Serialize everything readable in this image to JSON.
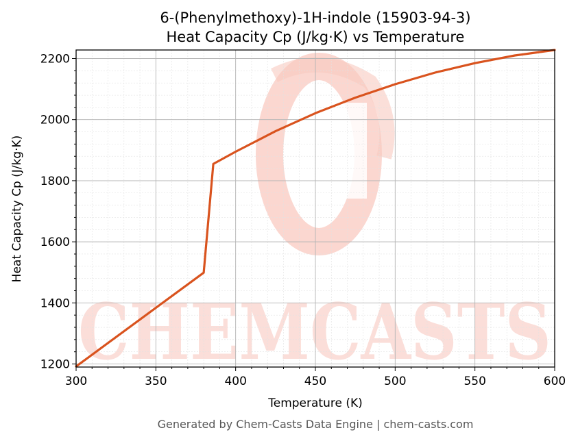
{
  "chart_data": {
    "type": "line",
    "title_line1": "6-(Phenylmethoxy)-1H-indole (15903-94-3)",
    "title_line2": "Heat Capacity Cp (J/kg·K) vs Temperature",
    "xlabel": "Temperature (K)",
    "ylabel": "Heat Capacity Cp (J/kg·K)",
    "xlim": [
      300,
      600
    ],
    "ylim": [
      1190,
      2228
    ],
    "x_ticks": [
      300,
      350,
      400,
      450,
      500,
      550,
      600
    ],
    "y_ticks": [
      1200,
      1400,
      1600,
      1800,
      2000,
      2200
    ],
    "grid": true,
    "series": [
      {
        "color": "#d9531e",
        "x": [
          300,
          380,
          386,
          400,
          425,
          450,
          475,
          500,
          525,
          550,
          575,
          600
        ],
        "y": [
          1192,
          1499,
          1855,
          1895,
          1962,
          2021,
          2072,
          2116,
          2154,
          2185,
          2210,
          2228
        ]
      }
    ]
  },
  "watermark": {
    "text": "CHEMCASTS",
    "color": "#f9c9c0"
  },
  "footer": "Generated by Chem-Casts Data Engine | chem-casts.com"
}
